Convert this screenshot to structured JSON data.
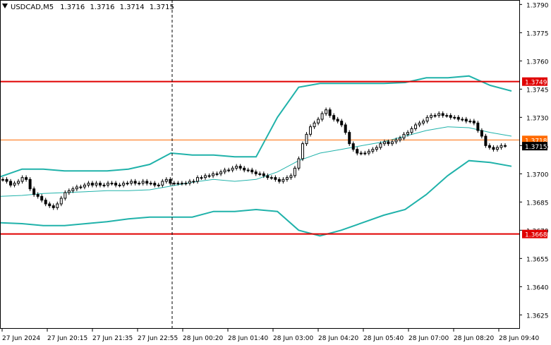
{
  "window": {
    "icon": "triangle-down-icon",
    "symbol": "USDCAD,M5",
    "ohlc": [
      "1.3716",
      "1.3716",
      "1.3714",
      "1.3715"
    ]
  },
  "colors": {
    "background": "#ffffff",
    "frame": "#000000",
    "grid": "#c8c8c8",
    "candle": "#000000",
    "bollinger": "#20b2aa",
    "level_line": "#e00000",
    "price_line": "#ff6a00",
    "price_tag": "#000000"
  },
  "chart_data": {
    "type": "candlestick",
    "xlabel": "",
    "ylabel": "",
    "ylim": [
      1.3618,
      1.3792
    ],
    "grid": false,
    "y_ticks": [
      "1.3790",
      "1.3775",
      "1.3760",
      "1.3745",
      "1.3730",
      "1.3715",
      "1.3700",
      "1.3685",
      "1.3670",
      "1.3655",
      "1.3640",
      "1.3625"
    ],
    "x_ticks": [
      "27 Jun 2024",
      "27 Jun 20:15",
      "27 Jun 21:35",
      "27 Jun 22:55",
      "28 Jun 00:20",
      "28 Jun 01:40",
      "28 Jun 03:00",
      "28 Jun 04:20",
      "28 Jun 05:40",
      "28 Jun 07:00",
      "28 Jun 08:20",
      "28 Jun 09:40"
    ],
    "horizontal_levels": [
      {
        "value": 1.3749,
        "label": "1.3749"
      },
      {
        "value": 1.3668,
        "label": "1.3668"
      }
    ],
    "current_price": {
      "value": 1.3718,
      "label": "1.3718"
    },
    "bid_price": {
      "value": 1.3715,
      "label": "1.3715"
    },
    "closes": [
      1.3697,
      1.3696,
      1.3694,
      1.3695,
      1.3696,
      1.3698,
      1.3697,
      1.3692,
      1.3689,
      1.3688,
      1.3686,
      1.3684,
      1.3683,
      1.3682,
      1.3684,
      1.3687,
      1.369,
      1.3691,
      1.3692,
      1.3693,
      1.3693,
      1.3694,
      1.3695,
      1.3694,
      1.3695,
      1.3694,
      1.3694,
      1.3695,
      1.3695,
      1.3694,
      1.3694,
      1.3695,
      1.3695,
      1.3696,
      1.3695,
      1.3695,
      1.3696,
      1.3695,
      1.3695,
      1.3694,
      1.3694,
      1.3696,
      1.3697,
      1.3695,
      1.3695,
      1.3695,
      1.3695,
      1.3695,
      1.3696,
      1.3696,
      1.3698,
      1.3698,
      1.3699,
      1.3699,
      1.37,
      1.37,
      1.3701,
      1.3702,
      1.3702,
      1.3703,
      1.3704,
      1.3703,
      1.3702,
      1.3702,
      1.3701,
      1.37,
      1.37,
      1.3699,
      1.3698,
      1.3698,
      1.3697,
      1.3696,
      1.3697,
      1.3698,
      1.3699,
      1.3703,
      1.3708,
      1.3716,
      1.3721,
      1.3725,
      1.3727,
      1.3729,
      1.3732,
      1.3734,
      1.3731,
      1.3729,
      1.3728,
      1.3726,
      1.3722,
      1.3716,
      1.3713,
      1.3711,
      1.3711,
      1.3711,
      1.3712,
      1.3713,
      1.3714,
      1.3716,
      1.3717,
      1.3716,
      1.3717,
      1.3718,
      1.3719,
      1.3721,
      1.3722,
      1.3724,
      1.3726,
      1.3727,
      1.3728,
      1.373,
      1.3731,
      1.3731,
      1.3732,
      1.3731,
      1.3731,
      1.373,
      1.373,
      1.3729,
      1.3729,
      1.3728,
      1.3728,
      1.3727,
      1.3723,
      1.372,
      1.3715,
      1.3714,
      1.3713,
      1.3714,
      1.3715,
      1.3715
    ],
    "series": [
      {
        "values": [
          1.36985,
          1.37025,
          1.37025,
          1.37015,
          1.37015,
          1.37015,
          1.37025,
          1.3705,
          1.3711,
          1.371,
          1.371,
          1.3709,
          1.3709,
          1.373,
          1.3746,
          1.3748,
          1.3748,
          1.3748,
          1.3748,
          1.37485,
          1.3751,
          1.3751,
          1.3752,
          1.3747,
          1.3744
        ]
      },
      {
        "values": [
          1.3688,
          1.36885,
          1.36895,
          1.369,
          1.36905,
          1.3691,
          1.3691,
          1.36915,
          1.36935,
          1.36955,
          1.3697,
          1.3696,
          1.3697,
          1.3701,
          1.3707,
          1.3711,
          1.3713,
          1.3715,
          1.3717,
          1.372,
          1.3723,
          1.3725,
          1.37245,
          1.3722,
          1.372
        ]
      },
      {
        "values": [
          1.3674,
          1.36735,
          1.36725,
          1.36725,
          1.36735,
          1.36745,
          1.3676,
          1.3677,
          1.3677,
          1.3677,
          1.368,
          1.368,
          1.3681,
          1.368,
          1.367,
          1.3667,
          1.367,
          1.3674,
          1.3678,
          1.3681,
          1.3689,
          1.3699,
          1.3707,
          1.3706,
          1.3704
        ]
      }
    ]
  }
}
